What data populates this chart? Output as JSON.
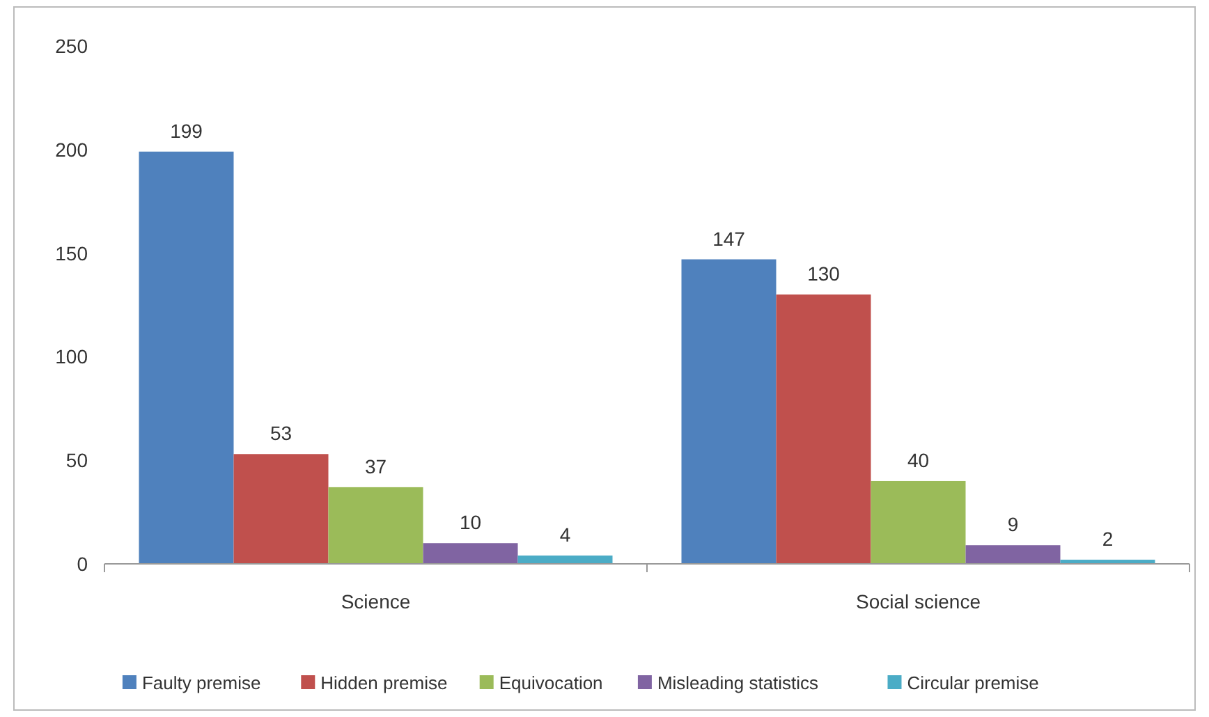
{
  "chart_data": {
    "type": "bar",
    "categories": [
      "Science",
      "Social science"
    ],
    "series": [
      {
        "name": "Faulty premise",
        "color": "#4f81bd",
        "values": [
          199,
          147
        ]
      },
      {
        "name": "Hidden premise",
        "color": "#c0504d",
        "values": [
          53,
          130
        ]
      },
      {
        "name": "Equivocation",
        "color": "#9bbb59",
        "values": [
          37,
          40
        ]
      },
      {
        "name": "Misleading statistics",
        "color": "#8064a2",
        "values": [
          10,
          9
        ]
      },
      {
        "name": "Circular premise",
        "color": "#4bacc6",
        "values": [
          4,
          2
        ]
      }
    ],
    "ylim": [
      0,
      250
    ],
    "yticks": [
      0,
      50,
      100,
      150,
      200,
      250
    ],
    "data_labels": true,
    "legend": "bottom",
    "grid": false
  }
}
